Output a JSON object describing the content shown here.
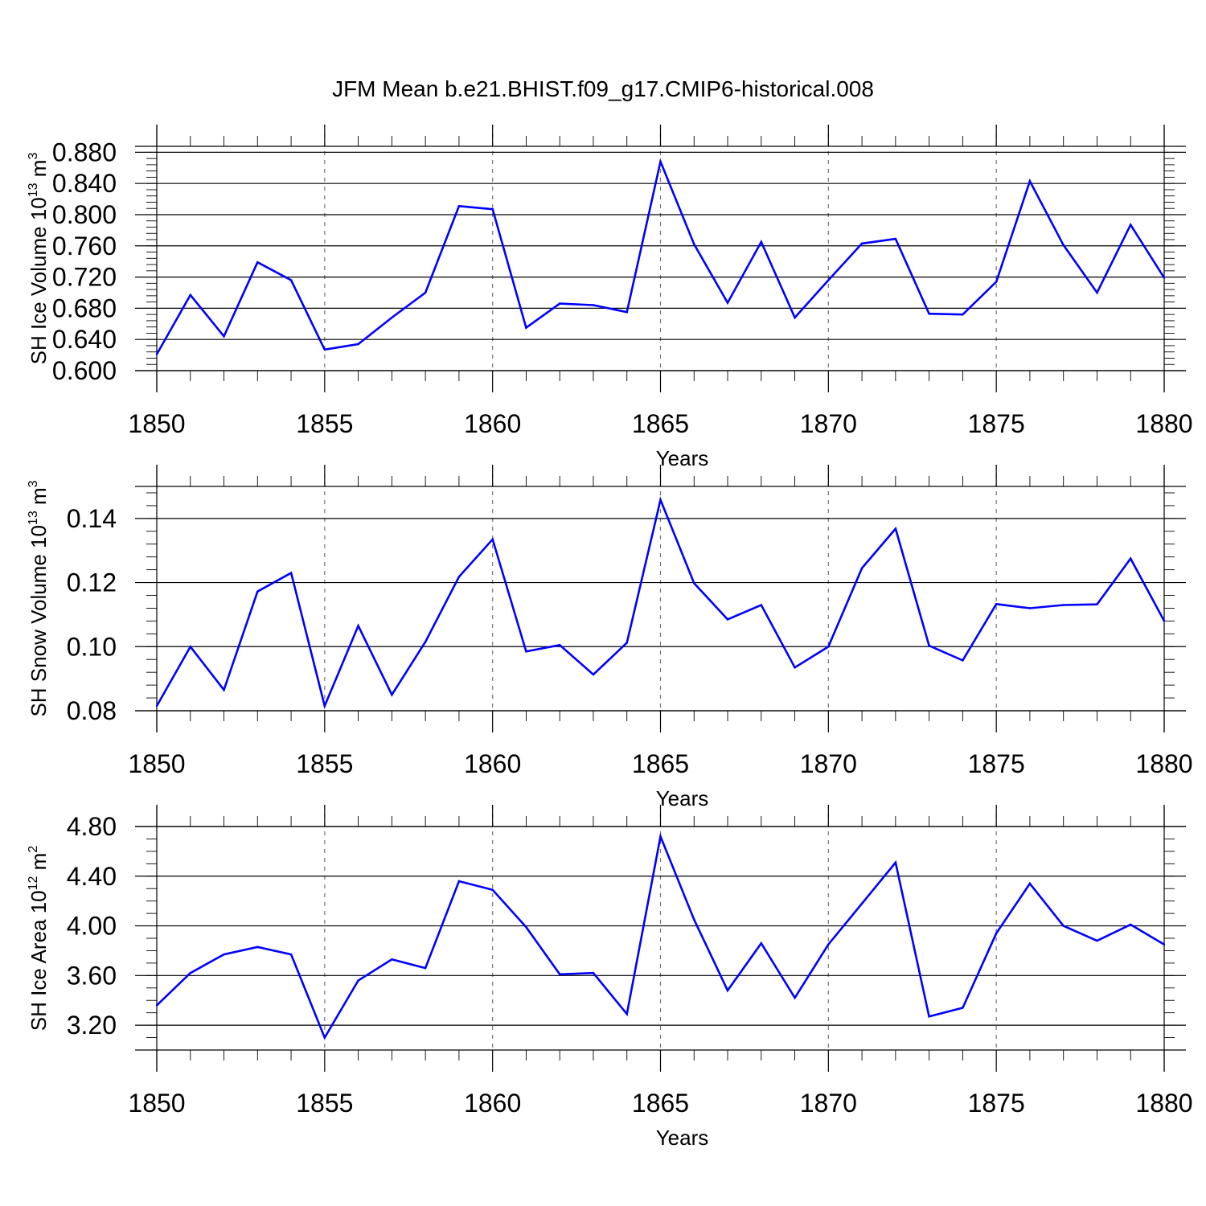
{
  "figure": {
    "title": "JFM Mean b.e21.BHIST.f09_g17.CMIP6-historical.008"
  },
  "chart_data": [
    {
      "type": "line",
      "title": "JFM Mean b.e21.BHIST.f09_g17.CMIP6-historical.008",
      "xlabel": "Years",
      "ylabel": "SH Ice Volume 10",
      "ylabel_exp": "13",
      "ylabel_unit": " m",
      "ylabel_unit_exp": "3",
      "xlim": [
        1850,
        1880
      ],
      "ylim": [
        0.6,
        0.8876
      ],
      "x_ticks": [
        "1850",
        "1855",
        "1860",
        "1865",
        "1870",
        "1875",
        "1880"
      ],
      "y_ticks": [
        0.6,
        0.64,
        0.68,
        0.72,
        0.76,
        0.8,
        0.84,
        0.88
      ],
      "y_tick_labels": [
        "0.600",
        "0.640",
        "0.680",
        "0.720",
        "0.760",
        "0.800",
        "0.840",
        "0.880"
      ],
      "y_minor_step": 0.008,
      "x_grid": [
        1855,
        1860,
        1865,
        1870,
        1875
      ],
      "series": [
        {
          "name": "SH Ice Volume",
          "color": "#0000ff",
          "x": [
            1850,
            1851,
            1852,
            1853,
            1854,
            1855,
            1856,
            1857,
            1858,
            1859,
            1860,
            1861,
            1862,
            1863,
            1864,
            1865,
            1866,
            1867,
            1868,
            1869,
            1870,
            1871,
            1872,
            1873,
            1874,
            1875,
            1876,
            1877,
            1878,
            1879,
            1880
          ],
          "values": [
            0.621,
            0.697,
            0.644,
            0.739,
            0.716,
            0.627,
            0.634,
            0.668,
            0.7,
            0.811,
            0.807,
            0.655,
            0.686,
            0.684,
            0.675,
            0.868,
            0.762,
            0.687,
            0.765,
            0.668,
            0.716,
            0.763,
            0.769,
            0.673,
            0.672,
            0.714,
            0.843,
            0.761,
            0.7,
            0.787,
            0.719
          ]
        }
      ]
    },
    {
      "type": "line",
      "xlabel": "Years",
      "ylabel": "SH Snow Volume 10",
      "ylabel_exp": "13",
      "ylabel_unit": " m",
      "ylabel_unit_exp": "3",
      "xlim": [
        1850,
        1880
      ],
      "ylim": [
        0.08,
        0.15
      ],
      "x_ticks": [
        "1850",
        "1855",
        "1860",
        "1865",
        "1870",
        "1875",
        "1880"
      ],
      "y_ticks": [
        0.08,
        0.1,
        0.12,
        0.14
      ],
      "y_tick_labels": [
        "0.08",
        "0.10",
        "0.12",
        "0.14"
      ],
      "y_minor_step": 0.004,
      "x_grid": [
        1855,
        1860,
        1865,
        1870,
        1875
      ],
      "series": [
        {
          "name": "SH Snow Volume",
          "color": "#0000ff",
          "x": [
            1850,
            1851,
            1852,
            1853,
            1854,
            1855,
            1856,
            1857,
            1858,
            1859,
            1860,
            1861,
            1862,
            1863,
            1864,
            1865,
            1866,
            1867,
            1868,
            1869,
            1870,
            1871,
            1872,
            1873,
            1874,
            1875,
            1876,
            1877,
            1878,
            1879,
            1880
          ],
          "values": [
            0.0815,
            0.1,
            0.0865,
            0.1172,
            0.123,
            0.0815,
            0.1065,
            0.085,
            0.1015,
            0.1218,
            0.1335,
            0.0985,
            0.1005,
            0.0913,
            0.1012,
            0.1458,
            0.1198,
            0.1085,
            0.113,
            0.0935,
            0.1,
            0.1245,
            0.1368,
            0.1003,
            0.0957,
            0.1133,
            0.112,
            0.113,
            0.1132,
            0.1275,
            0.108
          ]
        }
      ]
    },
    {
      "type": "line",
      "xlabel": "Years",
      "ylabel": "SH Ice Area 10",
      "ylabel_exp": "12",
      "ylabel_unit": " m",
      "ylabel_unit_exp": "2",
      "xlim": [
        1850,
        1880
      ],
      "ylim": [
        3.0,
        4.8
      ],
      "x_ticks": [
        "1850",
        "1855",
        "1860",
        "1865",
        "1870",
        "1875",
        "1880"
      ],
      "y_ticks": [
        3.2,
        3.6,
        4.0,
        4.4,
        4.8
      ],
      "y_tick_labels": [
        "3.20",
        "3.60",
        "4.00",
        "4.40",
        "4.80"
      ],
      "y_minor_step": 0.1,
      "x_grid": [
        1855,
        1860,
        1865,
        1870,
        1875
      ],
      "series": [
        {
          "name": "SH Ice Area",
          "color": "#0000ff",
          "x": [
            1850,
            1851,
            1852,
            1853,
            1854,
            1855,
            1856,
            1857,
            1858,
            1859,
            1860,
            1861,
            1862,
            1863,
            1864,
            1865,
            1866,
            1867,
            1868,
            1869,
            1870,
            1871,
            1872,
            1873,
            1874,
            1875,
            1876,
            1877,
            1878,
            1879,
            1880
          ],
          "values": [
            3.36,
            3.62,
            3.77,
            3.83,
            3.77,
            3.1,
            3.56,
            3.73,
            3.66,
            4.36,
            4.29,
            3.99,
            3.61,
            3.62,
            3.29,
            4.72,
            4.05,
            3.48,
            3.86,
            3.42,
            3.85,
            4.18,
            4.51,
            3.27,
            3.34,
            3.94,
            4.34,
            4.0,
            3.88,
            4.01,
            3.85
          ]
        }
      ]
    }
  ]
}
